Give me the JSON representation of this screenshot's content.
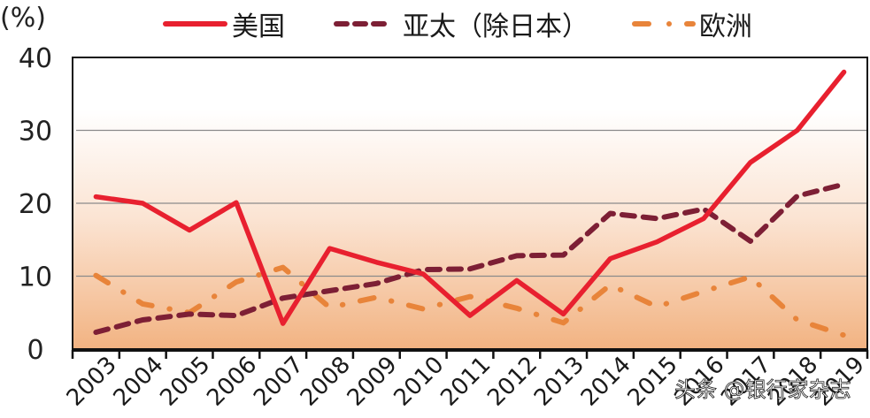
{
  "chart_data": {
    "type": "line",
    "title": "",
    "ylabel": "(%)",
    "xlabel": "",
    "ylim": [
      0,
      40
    ],
    "yticks": [
      0,
      10,
      20,
      30,
      40
    ],
    "grid": true,
    "legend_position": "top",
    "categories": [
      "2003",
      "2004",
      "2005",
      "2006",
      "2007",
      "2008",
      "2009",
      "2010",
      "2011",
      "2012",
      "2013",
      "2014",
      "2015",
      "2016",
      "2017",
      "2018",
      "2019"
    ],
    "series": [
      {
        "name": "美国",
        "style": "solid",
        "color": "#e8202f",
        "values": [
          20.9,
          20.0,
          16.3,
          20.1,
          3.5,
          13.8,
          11.9,
          10.3,
          4.6,
          9.4,
          4.8,
          12.4,
          14.7,
          17.9,
          25.6,
          30.0,
          38.0
        ]
      },
      {
        "name": "亚太（除日本）",
        "style": "dashed",
        "color": "#7d1f35",
        "values": [
          2.3,
          4.0,
          4.8,
          4.6,
          7.0,
          8.0,
          9.0,
          10.9,
          11.0,
          12.8,
          12.9,
          18.6,
          17.9,
          19.2,
          14.8,
          21.0,
          22.6
        ]
      },
      {
        "name": "欧洲",
        "style": "dash-dot",
        "color": "#e8843a",
        "values": [
          10.1,
          6.2,
          5.0,
          9.2,
          11.2,
          5.7,
          7.1,
          5.5,
          7.2,
          5.6,
          3.6,
          8.8,
          5.8,
          7.9,
          9.9,
          4.0,
          1.9
        ]
      }
    ]
  },
  "legend": {
    "items": [
      {
        "label": "美国",
        "color": "#e8202f"
      },
      {
        "label": "亚太（除日本）",
        "color": "#7d1f35"
      },
      {
        "label": "欧洲",
        "color": "#e8843a"
      }
    ]
  },
  "axis": {
    "y_unit": "(%)",
    "y_tick_labels": [
      "0",
      "10",
      "20",
      "30",
      "40"
    ]
  },
  "background": {
    "gradient_top": "#ffffff",
    "gradient_mid": "#fbe4d3",
    "gradient_bottom": "#f2b382",
    "gridline_color": "#8a8a8a"
  },
  "watermark": {
    "text": "头条 @银行家杂志"
  }
}
